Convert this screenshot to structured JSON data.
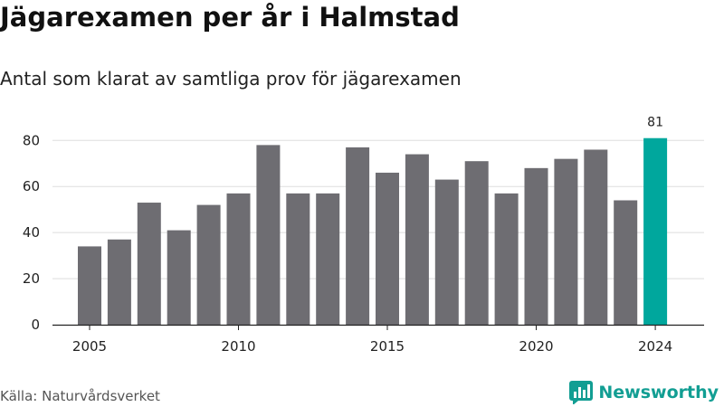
{
  "title": "Jägarexamen per år i Halmstad",
  "subtitle": "Antal som klarat av samtliga prov för jägarexamen",
  "source": "Källa: Naturvårdsverket",
  "brand": {
    "name": "Newsworthy",
    "icon": "newsworthy-logo-icon"
  },
  "colors": {
    "bar": "#6e6d72",
    "highlight": "#00a79d",
    "grid": "#dddddd",
    "axis": "#222222"
  },
  "chart_data": {
    "type": "bar",
    "title": "Jägarexamen per år i Halmstad",
    "subtitle": "Antal som klarat av samtliga prov för jägarexamen",
    "x": [
      2005,
      2006,
      2007,
      2008,
      2009,
      2010,
      2011,
      2012,
      2013,
      2014,
      2015,
      2016,
      2017,
      2018,
      2019,
      2020,
      2021,
      2022,
      2023,
      2024
    ],
    "values": [
      34,
      37,
      53,
      41,
      52,
      57,
      78,
      57,
      57,
      77,
      66,
      74,
      63,
      71,
      57,
      68,
      72,
      76,
      54,
      81
    ],
    "highlight": {
      "index": 19,
      "label": "81"
    },
    "x_ticks": [
      2005,
      2010,
      2015,
      2020,
      2024
    ],
    "y_ticks": [
      0,
      20,
      40,
      60,
      80
    ],
    "ylim": [
      0,
      86
    ],
    "xlabel": "",
    "ylabel": "",
    "grid": true,
    "legend": "none"
  }
}
